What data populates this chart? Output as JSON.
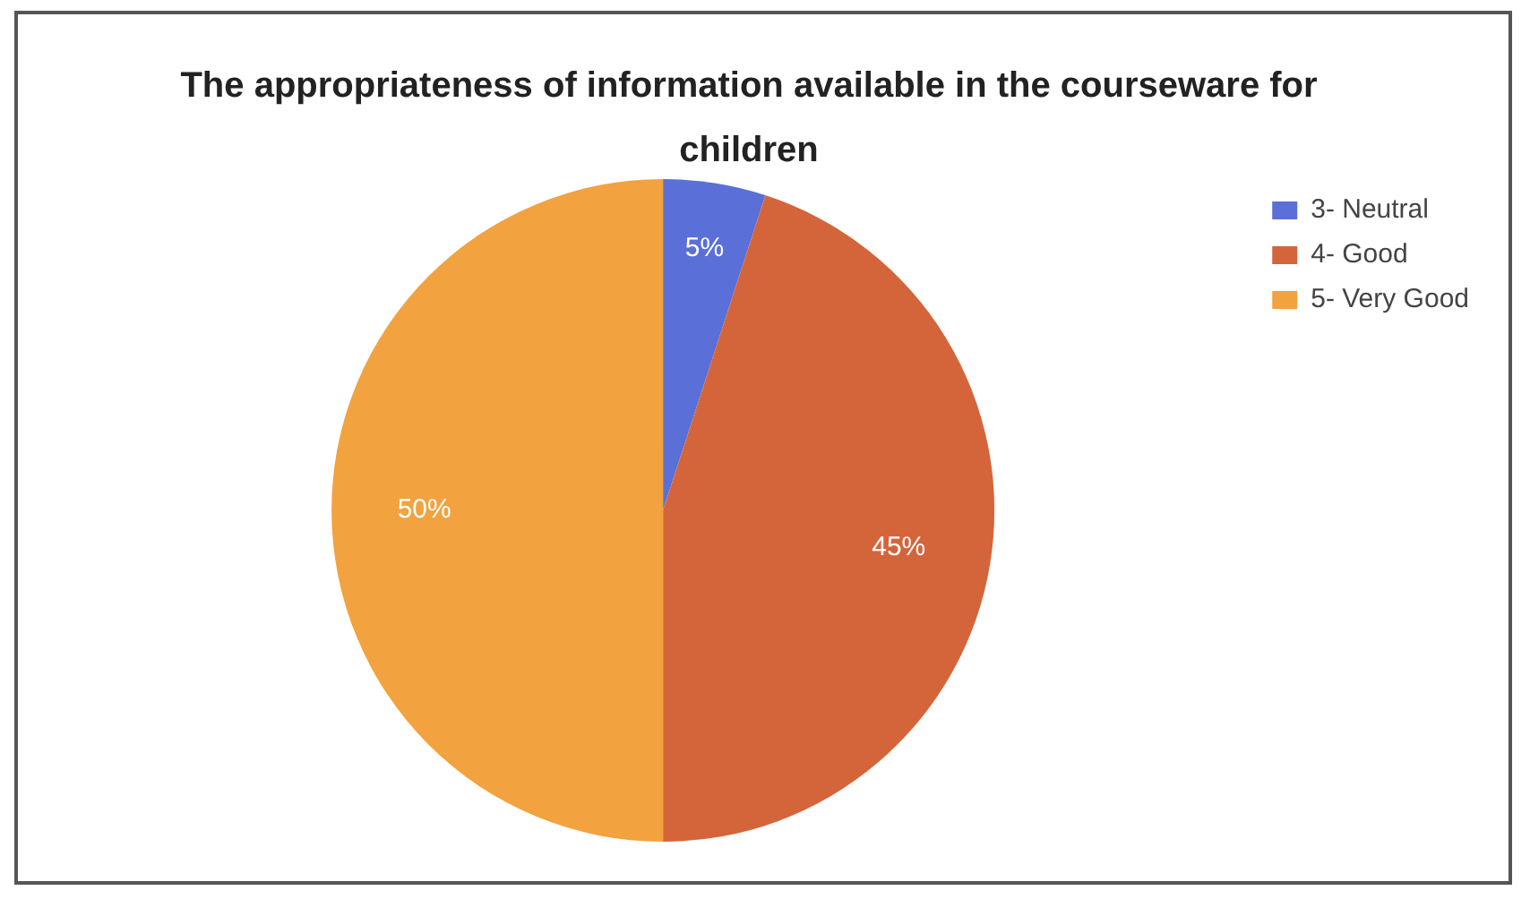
{
  "chart_data": {
    "type": "pie",
    "title": "The appropriateness of information available in the courseware for children",
    "categories": [
      "3- Neutral",
      "4- Good",
      "5- Very Good"
    ],
    "values": [
      5,
      45,
      50
    ],
    "colors": [
      "#5a6fd8",
      "#d4653a",
      "#f2a23f"
    ],
    "value_labels": [
      "5%",
      "45%",
      "50%"
    ],
    "legend": "top right"
  }
}
